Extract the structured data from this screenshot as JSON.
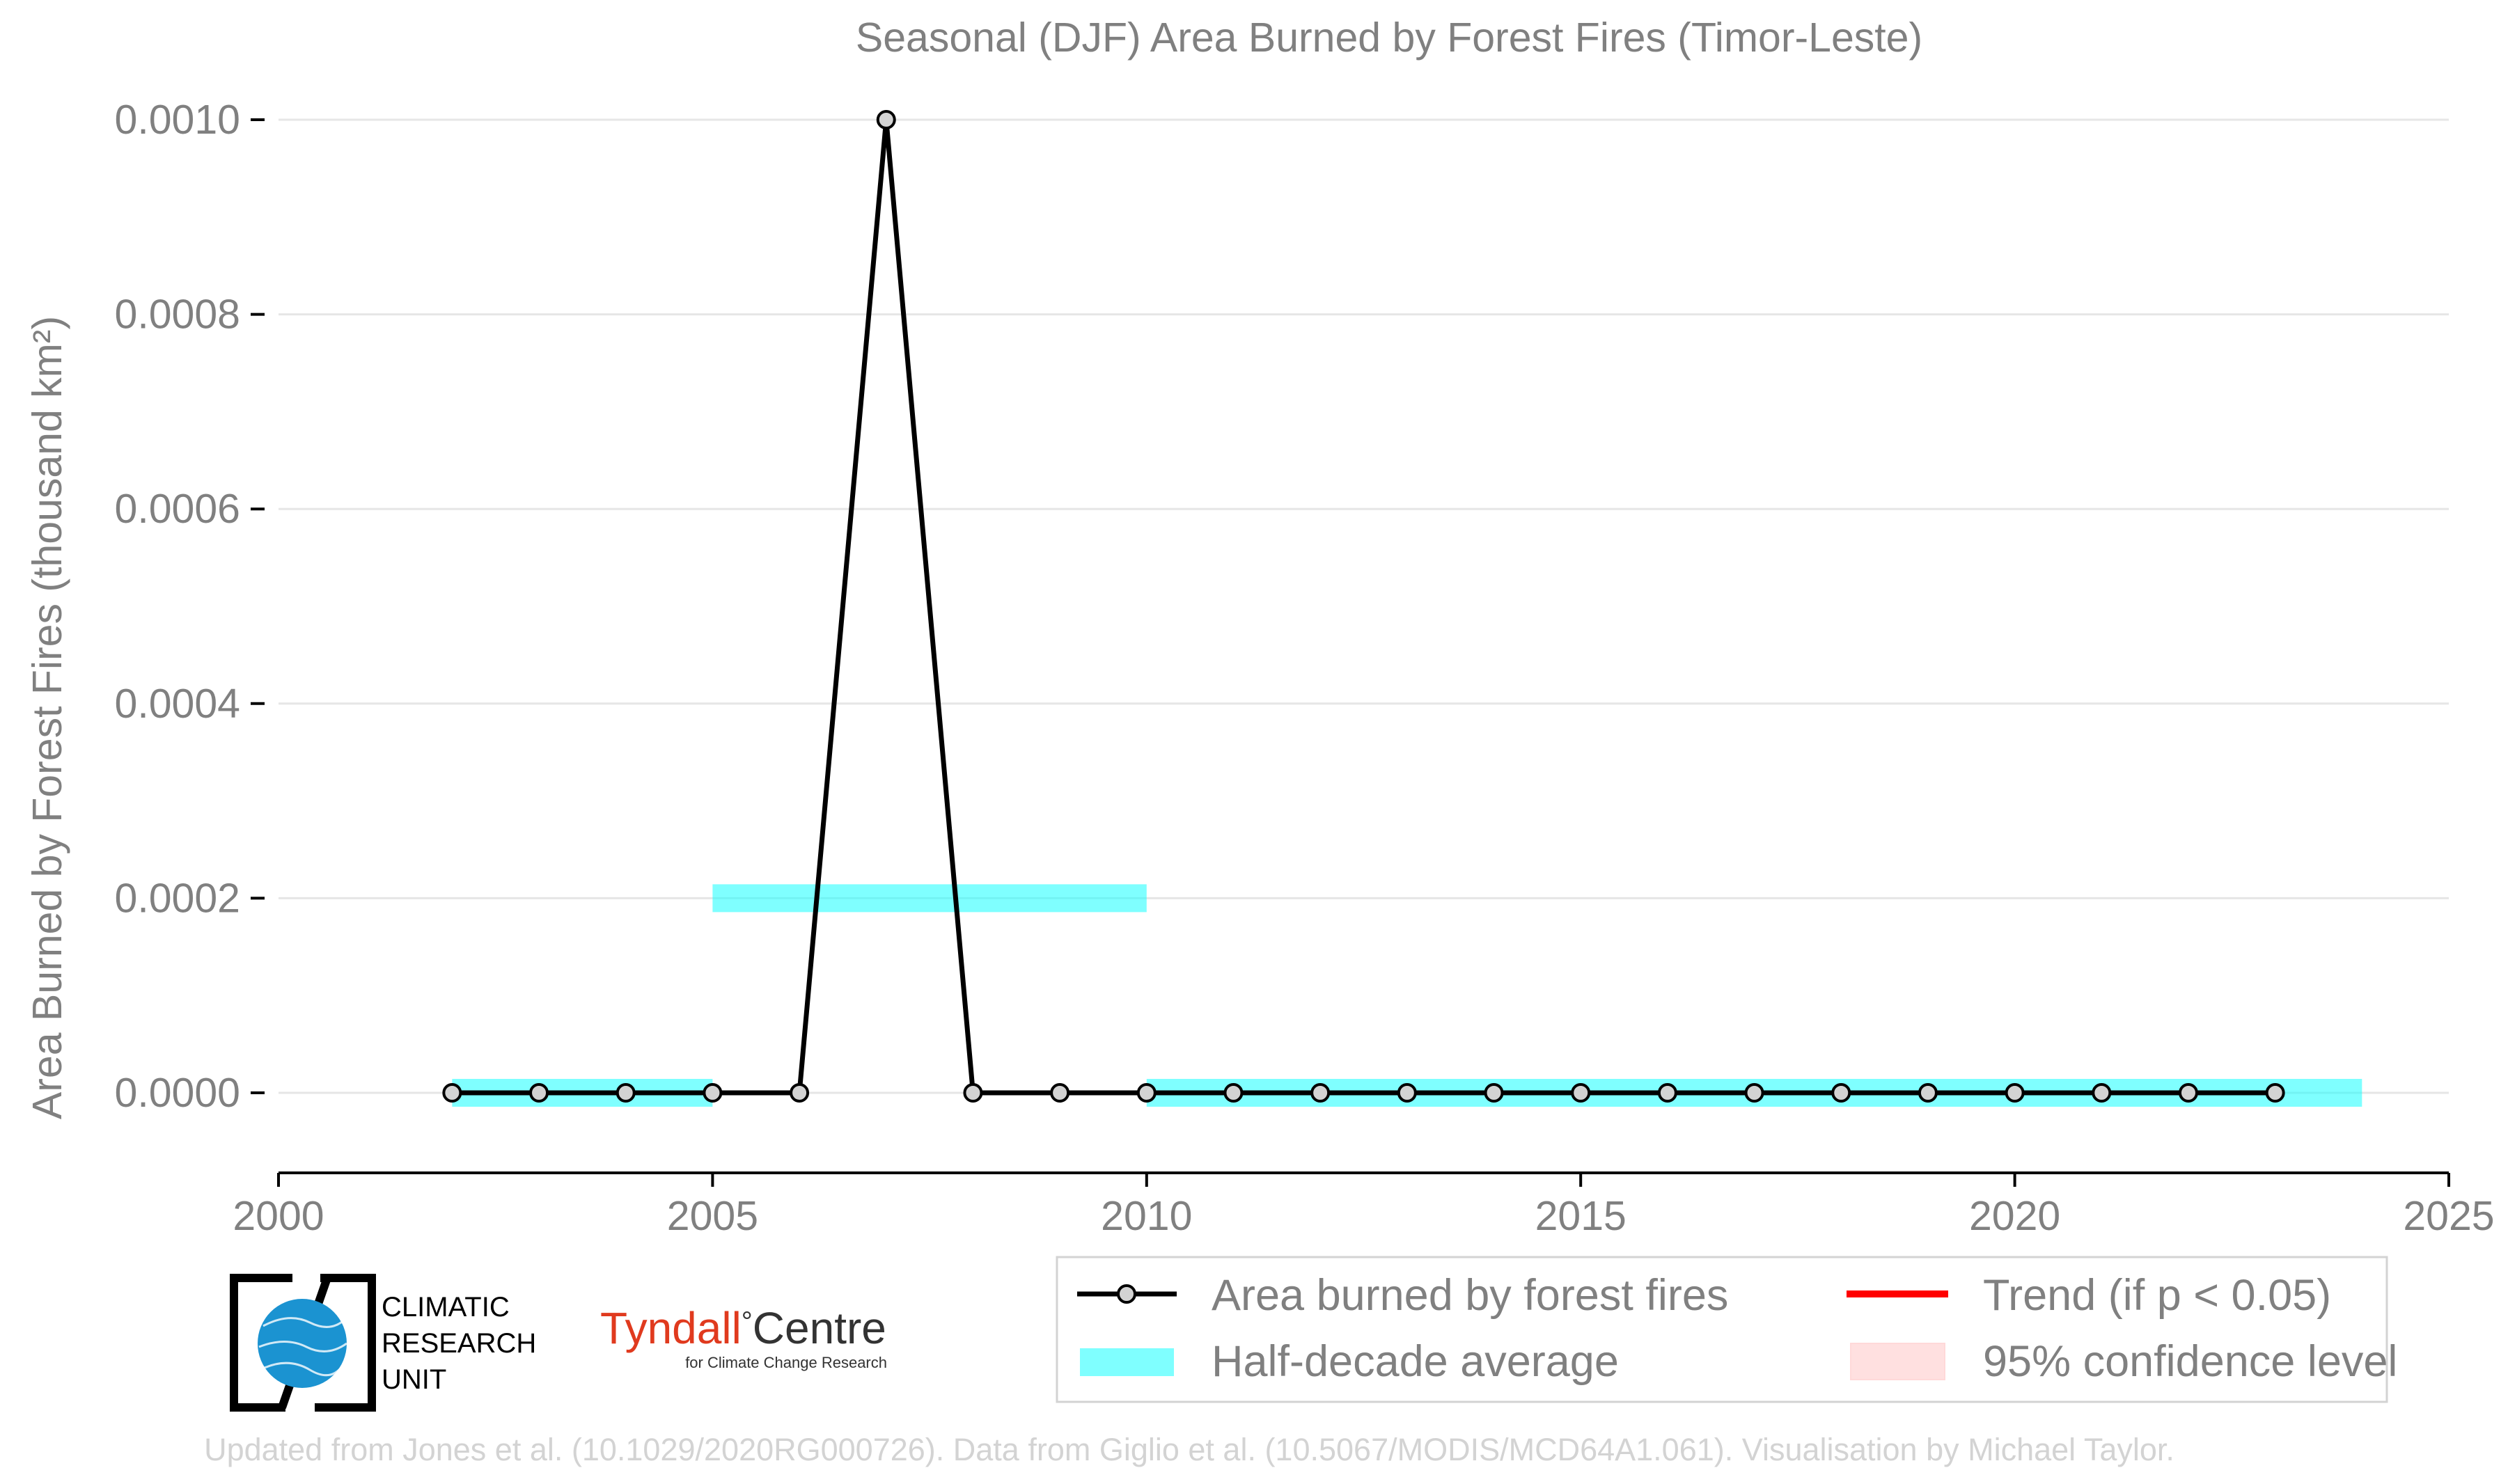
{
  "chart_data": {
    "type": "line",
    "title": "Seasonal (DJF) Area Burned by Forest Fires (Timor-Leste)",
    "ylabel": "Area Burned by Forest Fires (thousand km²)",
    "xlabel": "",
    "xlim": [
      2000,
      2025
    ],
    "ylim": [
      -8e-05,
      0.00101
    ],
    "x_ticks": [
      "2000",
      "2005",
      "2010",
      "2015",
      "2020",
      "2025"
    ],
    "y_ticks": [
      "0.0000",
      "0.0002",
      "0.0004",
      "0.0006",
      "0.0008",
      "0.0010"
    ],
    "grid": "horizontal",
    "series": [
      {
        "name": "Area burned by forest fires",
        "color": "#000000",
        "marker_color": "#d3d3d3",
        "x": [
          2002,
          2003,
          2004,
          2005,
          2006,
          2007,
          2008,
          2009,
          2010,
          2011,
          2012,
          2013,
          2014,
          2015,
          2016,
          2017,
          2018,
          2019,
          2020,
          2021,
          2022,
          2023
        ],
        "y": [
          0,
          0,
          0,
          0,
          0,
          0.001,
          0,
          0,
          0,
          0,
          0,
          0,
          0,
          0,
          0,
          0,
          0,
          0,
          0,
          0,
          0,
          0
        ]
      }
    ],
    "half_decade_average": {
      "name": "Half-decade average",
      "color": "#00ffff",
      "segments": [
        {
          "x": [
            2002,
            2005
          ],
          "y": 0.0
        },
        {
          "x": [
            2005,
            2010
          ],
          "y": 0.0002
        },
        {
          "x": [
            2010,
            2024
          ],
          "y": 0.0
        }
      ]
    },
    "legend": {
      "placement": "bottom-right",
      "items": [
        {
          "label": "Area burned by forest fires",
          "kind": "line-marker",
          "color": "#000000"
        },
        {
          "label": "Trend (if p < 0.05)",
          "kind": "line",
          "color": "#ff0000"
        },
        {
          "label": "Half-decade average",
          "kind": "band",
          "color": "#00ffff"
        },
        {
          "label": "95% confidence level",
          "kind": "band",
          "color": "#ffcccc"
        }
      ]
    }
  },
  "logos": {
    "cru": [
      "CLIMATIC",
      "RESEARCH",
      "UNIT"
    ],
    "tyndall_main": "Tyndall",
    "tyndall_degree": "°",
    "tyndall_centre": "Centre",
    "tyndall_sub": "for Climate Change Research"
  },
  "credit": "Updated from Jones et al. (10.1029/2020RG000726). Data from Giglio et al. (10.5067/MODIS/MCD64A1.061). Visualisation by Michael Taylor."
}
